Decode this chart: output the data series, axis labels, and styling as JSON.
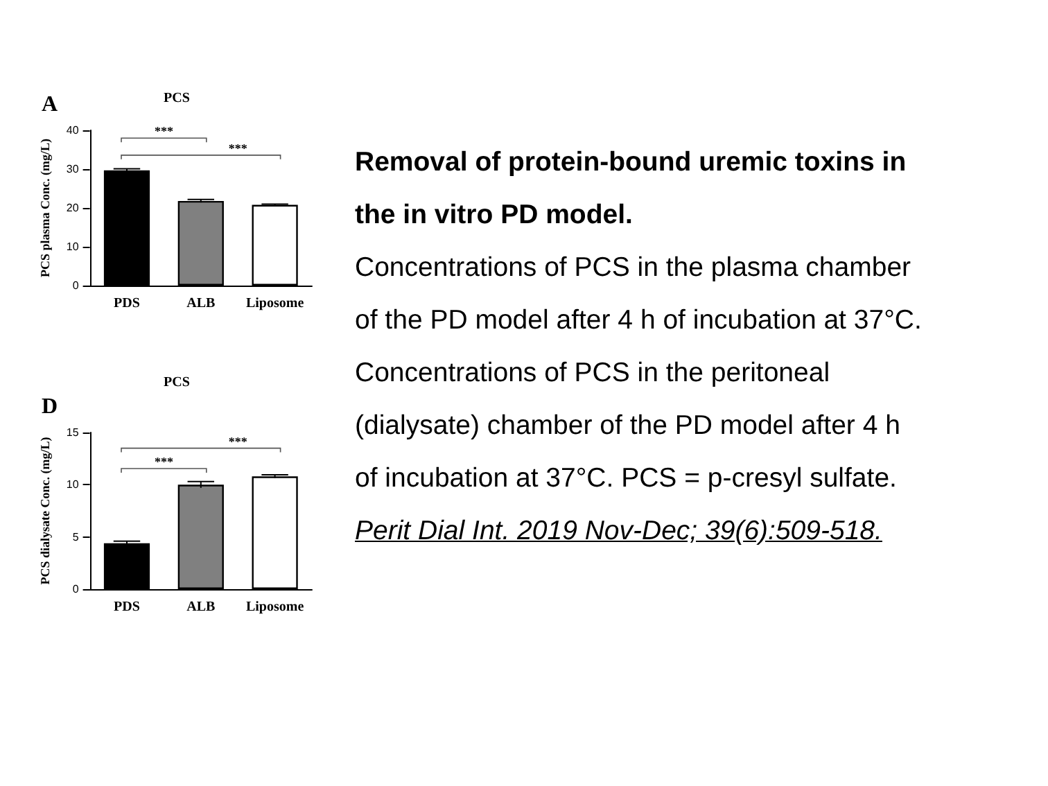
{
  "chart_data": [
    {
      "type": "bar",
      "title": "PCS",
      "ylabel": "PCS plasma Conc. (mg/L)",
      "categories": [
        "PDS",
        "ALB",
        "Liposome"
      ],
      "values": [
        29.7,
        21.8,
        20.8
      ],
      "colors": [
        "#000000",
        "#808080",
        "#ffffff"
      ],
      "errors": [
        0.4,
        0.4,
        0.2
      ],
      "ylim": [
        0,
        40
      ],
      "yticks": [
        0,
        10,
        20,
        30,
        40
      ],
      "annotations": [
        "A",
        "***",
        "***"
      ]
    },
    {
      "type": "bar",
      "title": "PCS",
      "ylabel": "PCS dialysate Conc. (mg/L)",
      "categories": [
        "PDS",
        "ALB",
        "Liposome"
      ],
      "values": [
        4.4,
        10.0,
        10.8
      ],
      "colors": [
        "#000000",
        "#808080",
        "#ffffff"
      ],
      "errors": [
        0.2,
        0.3,
        0.15
      ],
      "ylim": [
        0,
        15
      ],
      "yticks": [
        0,
        5,
        10,
        15
      ],
      "annotations": [
        "D",
        "***",
        "***"
      ]
    },
    {
      "type": "other",
      "title": "Removal of protein-bound uremic toxins in the in vitro PD model.",
      "annotations": [
        "Concentrations of PCS in the plasma chamber of the PD model after 4 h of incubation at 37°C. Concentrations of PCS in the peritoneal (dialysate) chamber of the PD model after 4 h of incubation at 37°C. PCS = p-cresyl sulfate.",
        "Perit Dial Int. 2019 Nov-Dec; 39(6):509-518."
      ]
    }
  ]
}
